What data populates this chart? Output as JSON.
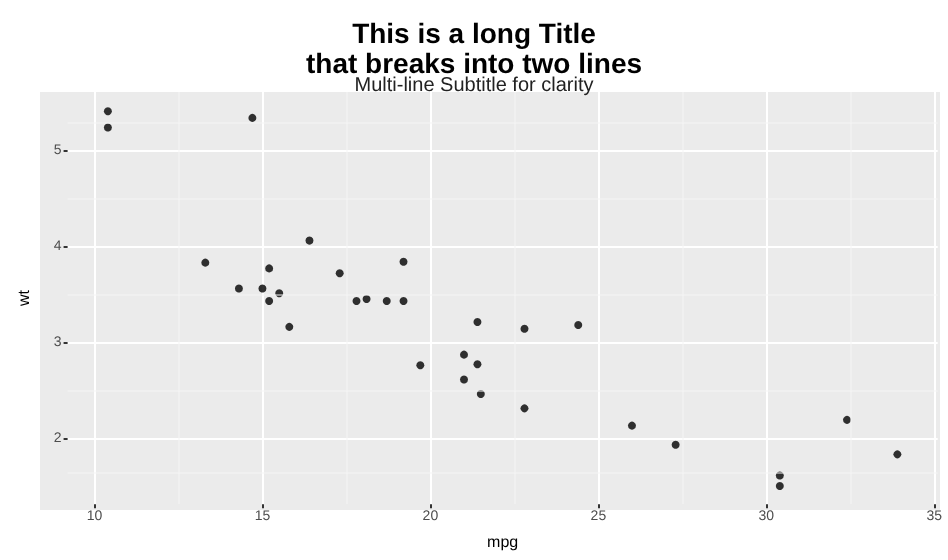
{
  "chart_data": {
    "type": "scatter",
    "title": "This is a long Title\nthat breaks into two lines",
    "subtitle": "Multi-line Subtitle for clarity",
    "xlabel": "mpg",
    "ylabel": "wt",
    "x": [
      21.0,
      21.0,
      22.8,
      21.4,
      18.7,
      18.1,
      14.3,
      24.4,
      22.8,
      19.2,
      17.8,
      16.4,
      17.3,
      15.2,
      10.4,
      10.4,
      14.7,
      32.4,
      30.4,
      33.9,
      21.5,
      15.5,
      15.2,
      13.3,
      19.2,
      27.3,
      26.0,
      30.4,
      15.8,
      19.7,
      15.0,
      21.4
    ],
    "values": [
      2.62,
      2.88,
      2.32,
      3.22,
      3.44,
      3.46,
      3.57,
      3.19,
      3.15,
      3.44,
      3.44,
      4.07,
      3.73,
      3.78,
      5.25,
      5.42,
      5.35,
      2.2,
      1.62,
      1.84,
      2.47,
      3.52,
      3.44,
      3.84,
      3.85,
      1.94,
      2.14,
      1.51,
      3.17,
      2.77,
      3.57,
      2.78
    ],
    "color": "#000000",
    "marker": "circle",
    "grid": true,
    "xlim": [
      9.2,
      35.1
    ],
    "xticks": [
      10,
      15,
      20,
      25,
      30,
      35
    ],
    "ylim": [
      1.32,
      5.62
    ],
    "yticks": [
      2,
      3,
      4,
      5
    ]
  }
}
